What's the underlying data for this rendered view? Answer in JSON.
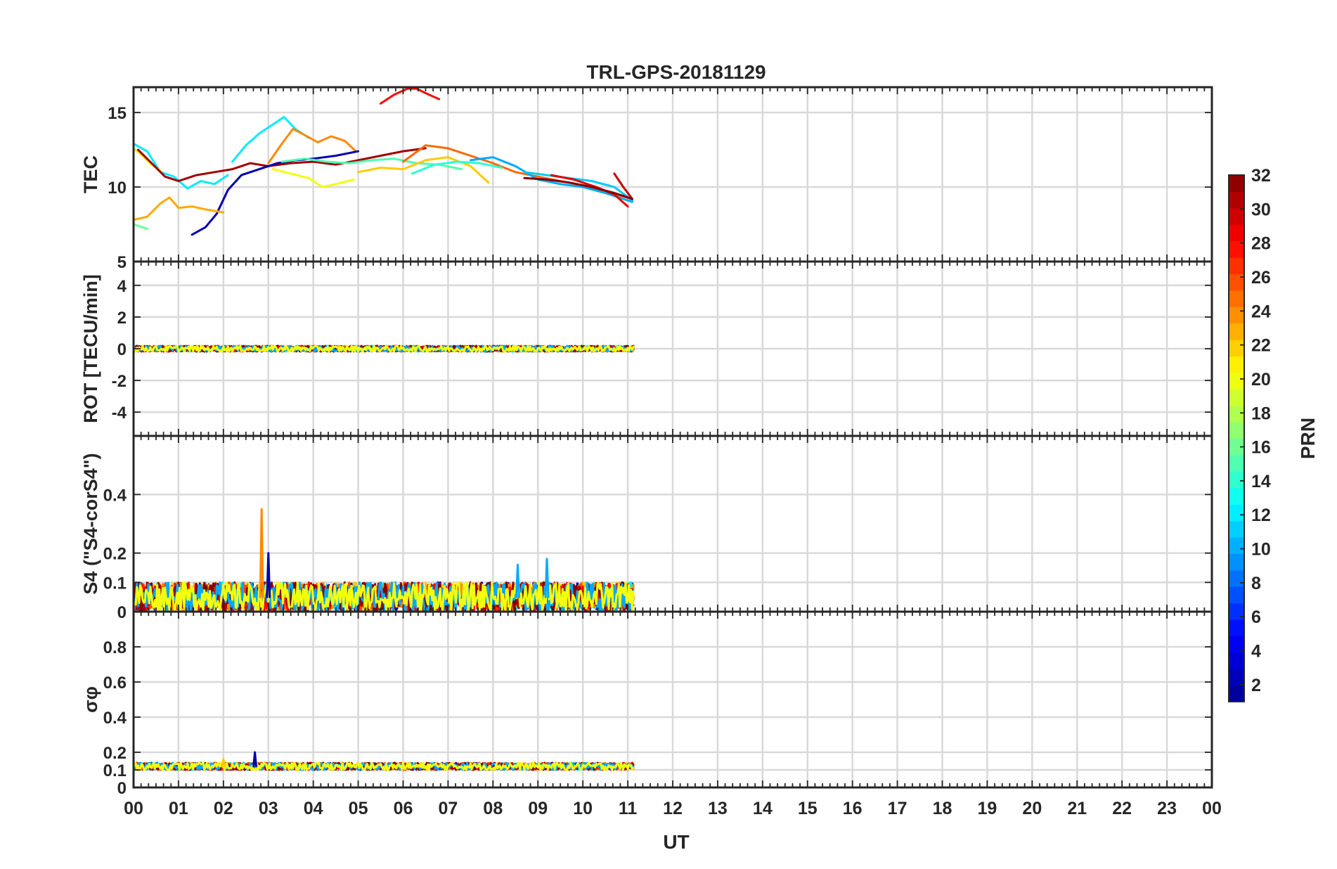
{
  "chart_data": {
    "type": "line",
    "title": "TRL-GPS-20181129",
    "xlabel": "UT",
    "xlim": [
      0,
      24
    ],
    "x_tick_labels": [
      "00",
      "01",
      "02",
      "03",
      "04",
      "05",
      "06",
      "07",
      "08",
      "09",
      "10",
      "11",
      "12",
      "13",
      "14",
      "15",
      "16",
      "17",
      "18",
      "19",
      "20",
      "21",
      "22",
      "23",
      "00"
    ],
    "grid": true,
    "colorbar": {
      "label": "PRN",
      "range": [
        1,
        32
      ],
      "tick_labels": [
        "2",
        "4",
        "6",
        "8",
        "10",
        "12",
        "14",
        "16",
        "18",
        "20",
        "22",
        "24",
        "26",
        "28",
        "30",
        "32"
      ],
      "colormap": [
        "#00008f",
        "#0000ff",
        "#0080ff",
        "#00ffff",
        "#80ff80",
        "#ffff00",
        "#ff8000",
        "#ff0000",
        "#800000"
      ],
      "placement": "right"
    },
    "panels": [
      {
        "id": "tec",
        "ylabel": "TEC",
        "ylim": [
          5,
          16.7
        ],
        "y_ticks": [
          5,
          10,
          15
        ],
        "y_tick_labels": [
          "5",
          "10",
          "15"
        ],
        "series": [
          {
            "prn": 28,
            "x": [
              5.5,
              5.8,
              6.1,
              6.3,
              6.5,
              6.8
            ],
            "y": [
              15.6,
              16.2,
              16.6,
              16.6,
              16.3,
              15.9
            ]
          },
          {
            "prn": 12,
            "x": [
              2.2,
              2.5,
              2.8,
              3.1,
              3.35,
              3.6,
              3.9
            ],
            "y": [
              11.7,
              12.8,
              13.6,
              14.2,
              14.7,
              13.9,
              13.3
            ]
          },
          {
            "prn": 24,
            "x": [
              3.0,
              3.3,
              3.55,
              3.8,
              4.1,
              4.4,
              4.7,
              4.95
            ],
            "y": [
              11.6,
              12.9,
              13.9,
              13.5,
              13.0,
              13.4,
              13.1,
              12.4
            ]
          },
          {
            "prn": 12,
            "x": [
              0,
              0.3,
              0.6,
              0.9,
              1.2,
              1.5,
              1.8,
              2.1
            ],
            "y": [
              12.9,
              12.4,
              11.0,
              10.7,
              9.9,
              10.4,
              10.2,
              10.8
            ]
          },
          {
            "prn": 21,
            "x": [
              0,
              0.2,
              0.4,
              0.6
            ],
            "y": [
              12.6,
              12.1,
              11.5,
              11.1
            ]
          },
          {
            "prn": 31,
            "x": [
              0.1,
              0.4,
              0.7,
              1.0,
              1.4,
              1.8,
              2.2,
              2.6,
              3.0,
              3.5,
              4.0,
              4.5,
              5.0,
              5.5,
              6.0,
              6.5
            ],
            "y": [
              12.5,
              11.6,
              10.7,
              10.4,
              10.8,
              11.0,
              11.2,
              11.6,
              11.4,
              11.6,
              11.7,
              11.5,
              11.8,
              12.1,
              12.4,
              12.6
            ]
          },
          {
            "prn": 2,
            "x": [
              1.3,
              1.6,
              1.85,
              2.1,
              2.4,
              2.8,
              3.2,
              3.6,
              4.0,
              4.5,
              5.0
            ],
            "y": [
              6.8,
              7.3,
              8.2,
              9.8,
              10.8,
              11.2,
              11.6,
              11.8,
              11.9,
              12.1,
              12.4
            ]
          },
          {
            "prn": 23,
            "x": [
              0,
              0.3,
              0.6,
              0.8,
              1.0,
              1.3,
              1.6,
              2.0
            ],
            "y": [
              7.8,
              8.0,
              8.9,
              9.3,
              8.6,
              8.7,
              8.5,
              8.3
            ]
          },
          {
            "prn": 16,
            "x": [
              0,
              0.3
            ],
            "y": [
              7.5,
              7.2
            ]
          },
          {
            "prn": 20,
            "x": [
              3.1,
              3.5,
              3.9,
              4.2,
              4.5,
              4.9
            ],
            "y": [
              11.2,
              10.9,
              10.6,
              10.0,
              10.2,
              10.5
            ]
          },
          {
            "prn": 15,
            "x": [
              3.3,
              3.8,
              4.3,
              4.8,
              5.3,
              5.8,
              6.3,
              6.8,
              7.3
            ],
            "y": [
              11.7,
              11.9,
              11.7,
              11.6,
              11.8,
              11.9,
              11.6,
              11.5,
              11.2
            ]
          },
          {
            "prn": 22,
            "x": [
              5.0,
              5.5,
              6.0,
              6.5,
              7.0,
              7.5,
              7.9
            ],
            "y": [
              11.0,
              11.3,
              11.2,
              11.8,
              12.0,
              11.4,
              10.3
            ]
          },
          {
            "prn": 25,
            "x": [
              6.0,
              6.5,
              7.0,
              7.5,
              8.0,
              8.5,
              9.0,
              9.5,
              10.0,
              10.5,
              11.1
            ],
            "y": [
              11.7,
              12.8,
              12.6,
              12.1,
              11.6,
              11.0,
              10.7,
              10.4,
              10.1,
              9.7,
              9.2
            ]
          },
          {
            "prn": 10,
            "x": [
              7.5,
              8.0,
              8.5,
              9.0,
              9.5,
              10.0,
              10.5,
              11.1
            ],
            "y": [
              11.8,
              12.0,
              11.4,
              10.5,
              10.2,
              10.0,
              9.6,
              9.0
            ]
          },
          {
            "prn": 14,
            "x": [
              6.2,
              6.7,
              7.2,
              7.7,
              8.2
            ],
            "y": [
              10.9,
              11.5,
              11.7,
              11.6,
              11.3
            ]
          },
          {
            "prn": 11,
            "x": [
              8.7,
              9.2,
              9.7,
              10.2,
              10.7,
              11.1
            ],
            "y": [
              11.0,
              10.8,
              10.6,
              10.4,
              10.0,
              9.1
            ]
          },
          {
            "prn": 29,
            "x": [
              9.3,
              9.8,
              10.3,
              10.7,
              11.0
            ],
            "y": [
              10.8,
              10.5,
              10.0,
              9.5,
              8.7
            ]
          },
          {
            "prn": 30,
            "x": [
              10.7,
              10.9,
              11.1
            ],
            "y": [
              10.9,
              10.0,
              9.2
            ]
          },
          {
            "prn": 32,
            "x": [
              8.7,
              9.2,
              9.7,
              10.2,
              10.7,
              11.1
            ],
            "y": [
              10.6,
              10.5,
              10.3,
              10.0,
              9.6,
              9.2
            ]
          }
        ]
      },
      {
        "id": "rot",
        "ylabel": "ROT [TECU/min]",
        "ylim": [
          -5.5,
          5.5
        ],
        "y_ticks": [
          -4,
          -2,
          0,
          2,
          4
        ],
        "y_tick_labels": [
          "-4",
          "-2",
          "0",
          "2",
          "4"
        ],
        "noise": {
          "center": 0.0,
          "amplitude": 0.18,
          "x_range": [
            0,
            11.15
          ]
        }
      },
      {
        "id": "s4",
        "ylabel": "S4 (\"S4-corS4\")",
        "ylim": [
          0,
          0.6
        ],
        "y_ticks": [
          0,
          0.1,
          0.2,
          0.4
        ],
        "y_tick_labels": [
          "0",
          "0.1",
          "0.2",
          "0.4"
        ],
        "noise": {
          "center": 0.05,
          "amplitude": 0.05,
          "x_range": [
            0,
            11.15
          ]
        },
        "spikes": [
          {
            "x": 2.85,
            "y": 0.35,
            "prn": 24
          },
          {
            "x": 3.0,
            "y": 0.2,
            "prn": 2
          },
          {
            "x": 9.2,
            "y": 0.18,
            "prn": 10
          },
          {
            "x": 8.55,
            "y": 0.16,
            "prn": 10
          }
        ]
      },
      {
        "id": "sigma_phi",
        "ylabel": "σφ",
        "ylim": [
          0,
          1.0
        ],
        "y_ticks": [
          0,
          0.1,
          0.2,
          0.4,
          0.6,
          0.8
        ],
        "y_tick_labels": [
          "0",
          "0.1",
          "0.2",
          "0.4",
          "0.6",
          "0.8"
        ],
        "noise": {
          "center": 0.12,
          "amplitude": 0.02,
          "x_range": [
            0,
            11.15
          ]
        },
        "spikes": [
          {
            "x": 2.7,
            "y": 0.2,
            "prn": 2
          },
          {
            "x": 2.0,
            "y": 0.16,
            "prn": 22
          }
        ]
      }
    ]
  }
}
